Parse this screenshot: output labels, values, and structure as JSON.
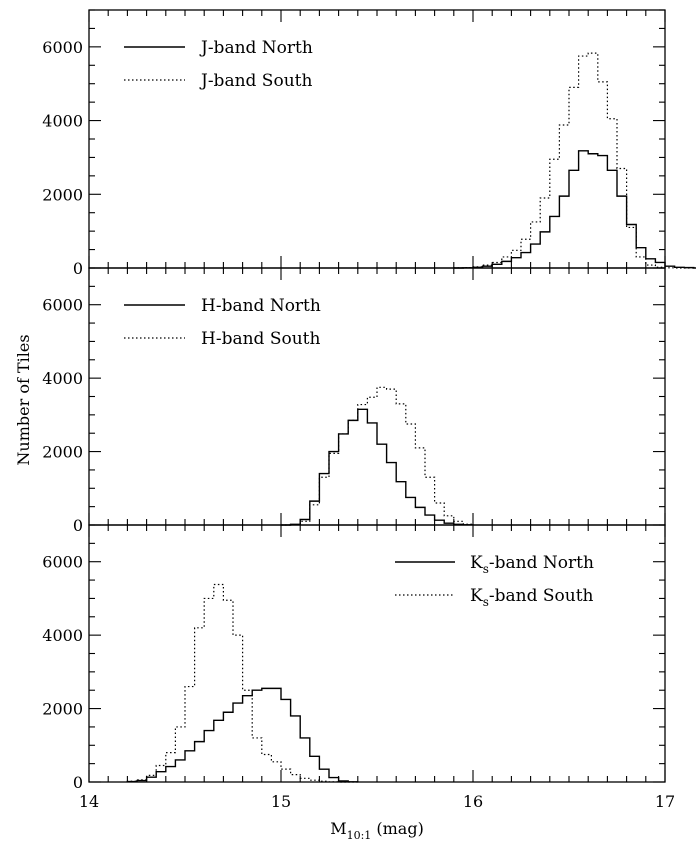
{
  "chart_data": [
    {
      "type": "histogram",
      "panel": "top",
      "xlim": [
        14,
        17
      ],
      "ylim": [
        0,
        7000
      ],
      "bin_width": 0.05,
      "yticks": [
        "0",
        "2000",
        "4000",
        "6000"
      ],
      "legend_position": "top-left",
      "series": [
        {
          "name": "J-band North",
          "style": "solid",
          "bin_start": 15.9,
          "values": [
            0,
            5,
            20,
            50,
            100,
            180,
            280,
            420,
            650,
            980,
            1400,
            1950,
            2650,
            3180,
            3100,
            3050,
            2650,
            1950,
            1180,
            550,
            250,
            150,
            50,
            20,
            10,
            0
          ]
        },
        {
          "name": "J-band South",
          "style": "dotted",
          "bin_start": 15.9,
          "values": [
            5,
            10,
            30,
            80,
            150,
            300,
            480,
            780,
            1250,
            1900,
            2950,
            3880,
            4900,
            5750,
            5830,
            5050,
            4050,
            2700,
            1100,
            300,
            80,
            20,
            5,
            0,
            0,
            0
          ]
        }
      ]
    },
    {
      "type": "histogram",
      "panel": "middle",
      "xlim": [
        14,
        17
      ],
      "ylim": [
        0,
        7000
      ],
      "bin_width": 0.05,
      "yticks": [
        "0",
        "2000",
        "4000",
        "6000"
      ],
      "legend_position": "top-left",
      "series": [
        {
          "name": "H-band North",
          "style": "solid",
          "bin_start": 15.0,
          "values": [
            0,
            20,
            150,
            650,
            1400,
            2000,
            2480,
            2850,
            3150,
            2780,
            2200,
            1700,
            1180,
            750,
            480,
            270,
            130,
            50,
            20,
            5
          ]
        },
        {
          "name": "H-band South",
          "style": "dotted",
          "bin_start": 15.0,
          "values": [
            0,
            10,
            100,
            550,
            1300,
            1950,
            2480,
            2850,
            3280,
            3480,
            3750,
            3700,
            3300,
            2750,
            2100,
            1300,
            600,
            250,
            100,
            20
          ]
        }
      ]
    },
    {
      "type": "histogram",
      "panel": "bottom",
      "xlim": [
        14,
        17
      ],
      "ylim": [
        0,
        7000
      ],
      "bin_width": 0.05,
      "yticks": [
        "0",
        "2000",
        "4000",
        "6000"
      ],
      "xticks": [
        "14",
        "15",
        "16",
        "17"
      ],
      "xlabel": "M",
      "xlabel_subscript": "10:1",
      "xlabel_unit": "(mag)",
      "ylabel": "Number of Tiles",
      "legend_position": "top-right",
      "series": [
        {
          "name": "K",
          "name_subscript": "s",
          "name_suffix": "-band North",
          "style": "solid",
          "bin_start": 14.2,
          "values": [
            10,
            40,
            130,
            280,
            420,
            600,
            850,
            1100,
            1400,
            1680,
            1900,
            2150,
            2350,
            2500,
            2550,
            2550,
            2250,
            1800,
            1200,
            700,
            350,
            120,
            30,
            5
          ]
        },
        {
          "name": "K",
          "name_subscript": "s",
          "name_suffix": "-band South",
          "style": "dotted",
          "bin_start": 14.2,
          "values": [
            20,
            60,
            180,
            450,
            800,
            1500,
            2600,
            4200,
            5000,
            5380,
            4950,
            4000,
            2500,
            1200,
            750,
            550,
            350,
            200,
            100,
            50,
            20,
            5,
            0,
            0
          ]
        }
      ]
    }
  ]
}
